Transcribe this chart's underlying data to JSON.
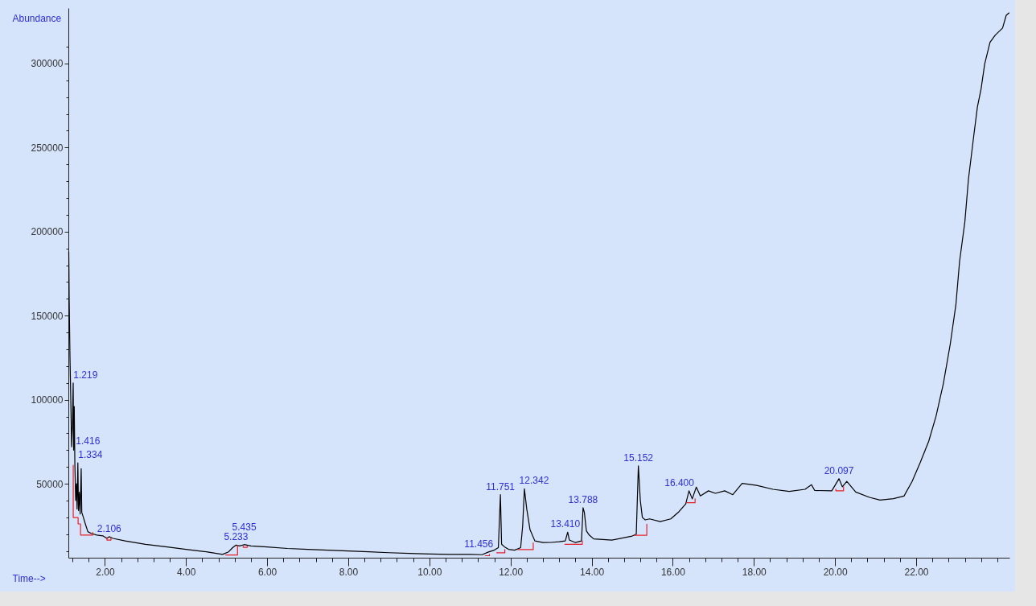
{
  "chart_data": {
    "type": "line",
    "xlabel": "Time-->",
    "ylabel": "Abundance",
    "xlim": [
      1.1,
      24.3
    ],
    "ylim": [
      6000,
      333000
    ],
    "xticks": [
      {
        "value": 1.2,
        "label": null
      },
      {
        "value": 1.6,
        "label": null
      },
      {
        "value": 2,
        "label": "2.00"
      },
      {
        "value": 2.4,
        "label": null
      },
      {
        "value": 2.8,
        "label": null
      },
      {
        "value": 3.2,
        "label": null
      },
      {
        "value": 3.6,
        "label": null
      },
      {
        "value": 4,
        "label": "4.00"
      },
      {
        "value": 4.4,
        "label": null
      },
      {
        "value": 4.8,
        "label": null
      },
      {
        "value": 5.2,
        "label": null
      },
      {
        "value": 5.6,
        "label": null
      },
      {
        "value": 6,
        "label": "6.00"
      },
      {
        "value": 6.4,
        "label": null
      },
      {
        "value": 6.8,
        "label": null
      },
      {
        "value": 7.2,
        "label": null
      },
      {
        "value": 7.6,
        "label": null
      },
      {
        "value": 8,
        "label": "8.00"
      },
      {
        "value": 8.4,
        "label": null
      },
      {
        "value": 8.8,
        "label": null
      },
      {
        "value": 9.2,
        "label": null
      },
      {
        "value": 9.6,
        "label": null
      },
      {
        "value": 10,
        "label": "10.00"
      },
      {
        "value": 10.4,
        "label": null
      },
      {
        "value": 10.8,
        "label": null
      },
      {
        "value": 11.2,
        "label": null
      },
      {
        "value": 11.6,
        "label": null
      },
      {
        "value": 12,
        "label": "12.00"
      },
      {
        "value": 12.4,
        "label": null
      },
      {
        "value": 12.8,
        "label": null
      },
      {
        "value": 13.2,
        "label": null
      },
      {
        "value": 13.6,
        "label": null
      },
      {
        "value": 14,
        "label": "14.00"
      },
      {
        "value": 14.4,
        "label": null
      },
      {
        "value": 14.8,
        "label": null
      },
      {
        "value": 15.2,
        "label": null
      },
      {
        "value": 15.6,
        "label": null
      },
      {
        "value": 16,
        "label": "16.00"
      },
      {
        "value": 16.4,
        "label": null
      },
      {
        "value": 16.8,
        "label": null
      },
      {
        "value": 17.2,
        "label": null
      },
      {
        "value": 17.6,
        "label": null
      },
      {
        "value": 18,
        "label": "18.00"
      },
      {
        "value": 18.4,
        "label": null
      },
      {
        "value": 18.8,
        "label": null
      },
      {
        "value": 19.2,
        "label": null
      },
      {
        "value": 19.6,
        "label": null
      },
      {
        "value": 20,
        "label": "20.00"
      },
      {
        "value": 20.4,
        "label": null
      },
      {
        "value": 20.8,
        "label": null
      },
      {
        "value": 21.2,
        "label": null
      },
      {
        "value": 21.6,
        "label": null
      },
      {
        "value": 22,
        "label": "22.00"
      },
      {
        "value": 22.4,
        "label": null
      },
      {
        "value": 22.8,
        "label": null
      },
      {
        "value": 23.2,
        "label": null
      },
      {
        "value": 23.6,
        "label": null
      },
      {
        "value": 24,
        "label": null
      }
    ],
    "yticks": [
      {
        "value": 10000,
        "label": null
      },
      {
        "value": 20000,
        "label": null
      },
      {
        "value": 30000,
        "label": null
      },
      {
        "value": 40000,
        "label": null
      },
      50000,
      {
        "value": 60000,
        "label": null
      },
      {
        "value": 70000,
        "label": null
      },
      {
        "value": 80000,
        "label": null
      },
      {
        "value": 90000,
        "label": null
      },
      100000,
      {
        "value": 110000,
        "label": null
      },
      {
        "value": 120000,
        "label": null
      },
      {
        "value": 130000,
        "label": null
      },
      {
        "value": 140000,
        "label": null
      },
      150000,
      {
        "value": 160000,
        "label": null
      },
      {
        "value": 170000,
        "label": null
      },
      {
        "value": 180000,
        "label": null
      },
      {
        "value": 190000,
        "label": null
      },
      200000,
      {
        "value": 210000,
        "label": null
      },
      {
        "value": 220000,
        "label": null
      },
      {
        "value": 230000,
        "label": null
      },
      {
        "value": 240000,
        "label": null
      },
      250000,
      {
        "value": 260000,
        "label": null
      },
      {
        "value": 270000,
        "label": null
      },
      {
        "value": 280000,
        "label": null
      },
      {
        "value": 290000,
        "label": null
      },
      300000,
      {
        "value": 310000,
        "label": null
      }
    ],
    "series": [
      {
        "color": "#000000",
        "x": [
          1.11,
          1.12,
          1.14,
          1.16,
          1.18,
          1.2,
          1.219,
          1.23,
          1.245,
          1.26,
          1.28,
          1.3,
          1.315,
          1.334,
          1.35,
          1.37,
          1.39,
          1.416,
          1.43,
          1.47,
          1.52,
          1.58,
          1.66,
          1.8,
          1.95,
          2.05,
          2.106,
          2.2,
          2.5,
          3,
          3.5,
          4,
          4.5,
          4.9,
          5.05,
          5.15,
          5.233,
          5.32,
          5.435,
          5.6,
          6,
          6.5,
          7,
          7.5,
          8,
          8.5,
          9,
          9.5,
          10,
          10.5,
          11,
          11.3,
          11.456,
          11.6,
          11.7,
          11.751,
          11.78,
          11.85,
          11.95,
          12.1,
          12.25,
          12.3,
          12.342,
          12.4,
          12.48,
          12.6,
          12.8,
          13,
          13.2,
          13.35,
          13.41,
          13.45,
          13.6,
          13.75,
          13.788,
          13.82,
          13.87,
          13.94,
          14.05,
          14.5,
          15,
          15.1,
          15.152,
          15.2,
          15.25,
          15.32,
          15.43,
          15.69,
          15.95,
          16.15,
          16.32,
          16.4,
          16.48,
          16.58,
          16.68,
          16.88,
          17.05,
          17.28,
          17.48,
          17.71,
          18.07,
          18.47,
          18.87,
          19.26,
          19.42,
          19.5,
          19.92,
          20.097,
          20.18,
          20.29,
          20.51,
          20.85,
          21.11,
          21.44,
          21.7,
          21.9,
          22.1,
          22.31,
          22.49,
          22.67,
          22.84,
          22.98,
          23.07,
          23.2,
          23.29,
          23.42,
          23.51,
          23.6,
          23.69,
          23.82,
          23.95,
          24.13,
          24.22,
          24.29
        ],
        "values": [
          188000,
          160000,
          125000,
          100000,
          72000,
          85000,
          110000,
          70000,
          96000,
          62000,
          40000,
          50000,
          35000,
          62400,
          34000,
          45000,
          32000,
          59000,
          33000,
          30000,
          26000,
          21500,
          20500,
          19500,
          19000,
          17500,
          18500,
          17500,
          16000,
          14000,
          12500,
          11000,
          9500,
          8000,
          9500,
          12000,
          13500,
          13000,
          13800,
          13000,
          12400,
          11500,
          11000,
          10500,
          10000,
          9500,
          9000,
          8600,
          8200,
          8000,
          8000,
          7800,
          9400,
          10500,
          12000,
          43500,
          14000,
          12500,
          11000,
          10500,
          12000,
          25000,
          47000,
          35000,
          22800,
          16000,
          15000,
          15100,
          15500,
          16000,
          21200,
          16500,
          15000,
          16000,
          35700,
          33000,
          22000,
          19500,
          17200,
          16500,
          18900,
          20000,
          60700,
          40000,
          30000,
          28500,
          29100,
          27500,
          29100,
          33300,
          38000,
          45800,
          41000,
          48000,
          42800,
          45800,
          44300,
          45800,
          43500,
          50200,
          49000,
          46700,
          45400,
          46700,
          49400,
          46000,
          45800,
          53000,
          48200,
          51400,
          45100,
          41900,
          40300,
          41100,
          42700,
          51400,
          62600,
          75300,
          90200,
          109500,
          133000,
          156600,
          182200,
          205700,
          231400,
          257000,
          274200,
          284800,
          299800,
          312600,
          316900,
          321100,
          328700,
          330100
        ]
      },
      {
        "color": "#e8202a",
        "x": [
          1.22,
          1.22,
          1.34,
          1.34,
          1.4,
          1.4,
          1.7,
          1.7,
          null,
          2.05,
          2.05,
          2.15,
          2.15,
          null,
          4.98,
          5.27,
          5.27,
          null,
          5.41,
          5.41,
          5.51,
          5.51,
          null,
          11.38,
          11.48,
          11.48,
          null,
          11.66,
          11.86,
          11.86,
          null,
          12.18,
          12.56,
          12.56,
          null,
          13.34,
          13.77,
          13.77,
          null,
          15.06,
          15.36,
          15.36,
          null,
          16.35,
          16.55,
          16.55,
          null,
          20.02,
          20.02,
          20.21,
          20.21
        ],
        "values": [
          61000,
          29900,
          29900,
          26100,
          26100,
          19500,
          19500,
          21000,
          null,
          18000,
          16500,
          16500,
          18000,
          null,
          7600,
          7600,
          13200,
          null,
          13000,
          12200,
          12200,
          13000,
          null,
          7200,
          7200,
          8000,
          null,
          8900,
          8900,
          10800,
          null,
          10800,
          10800,
          14800,
          null,
          14000,
          14000,
          16000,
          null,
          19300,
          19300,
          26000,
          null,
          38700,
          38700,
          41000,
          null,
          46800,
          45800,
          45800,
          48200
        ]
      }
    ],
    "annotations": [
      {
        "text": "1.219",
        "x": 1.219,
        "y": 110000
      },
      {
        "text": "1.334",
        "x": 1.334,
        "y": 62400
      },
      {
        "text": "1.416",
        "x": 1.416,
        "y": 59000
      },
      {
        "text": "2.106",
        "x": 2.106,
        "y": 18500
      },
      {
        "text": "5.233",
        "x": 5.233,
        "y": 13500
      },
      {
        "text": "5.435",
        "x": 5.435,
        "y": 13800
      },
      {
        "text": "11.456",
        "x": 11.456,
        "y": 9400
      },
      {
        "text": "11.751",
        "x": 11.751,
        "y": 43500
      },
      {
        "text": "12.342",
        "x": 12.342,
        "y": 47000
      },
      {
        "text": "13.410",
        "x": 13.41,
        "y": 21200
      },
      {
        "text": "13.788",
        "x": 13.788,
        "y": 35700
      },
      {
        "text": "15.152",
        "x": 15.152,
        "y": 60700
      },
      {
        "text": "16.400",
        "x": 16.4,
        "y": 45800
      },
      {
        "text": "20.097",
        "x": 20.097,
        "y": 53000
      }
    ]
  }
}
